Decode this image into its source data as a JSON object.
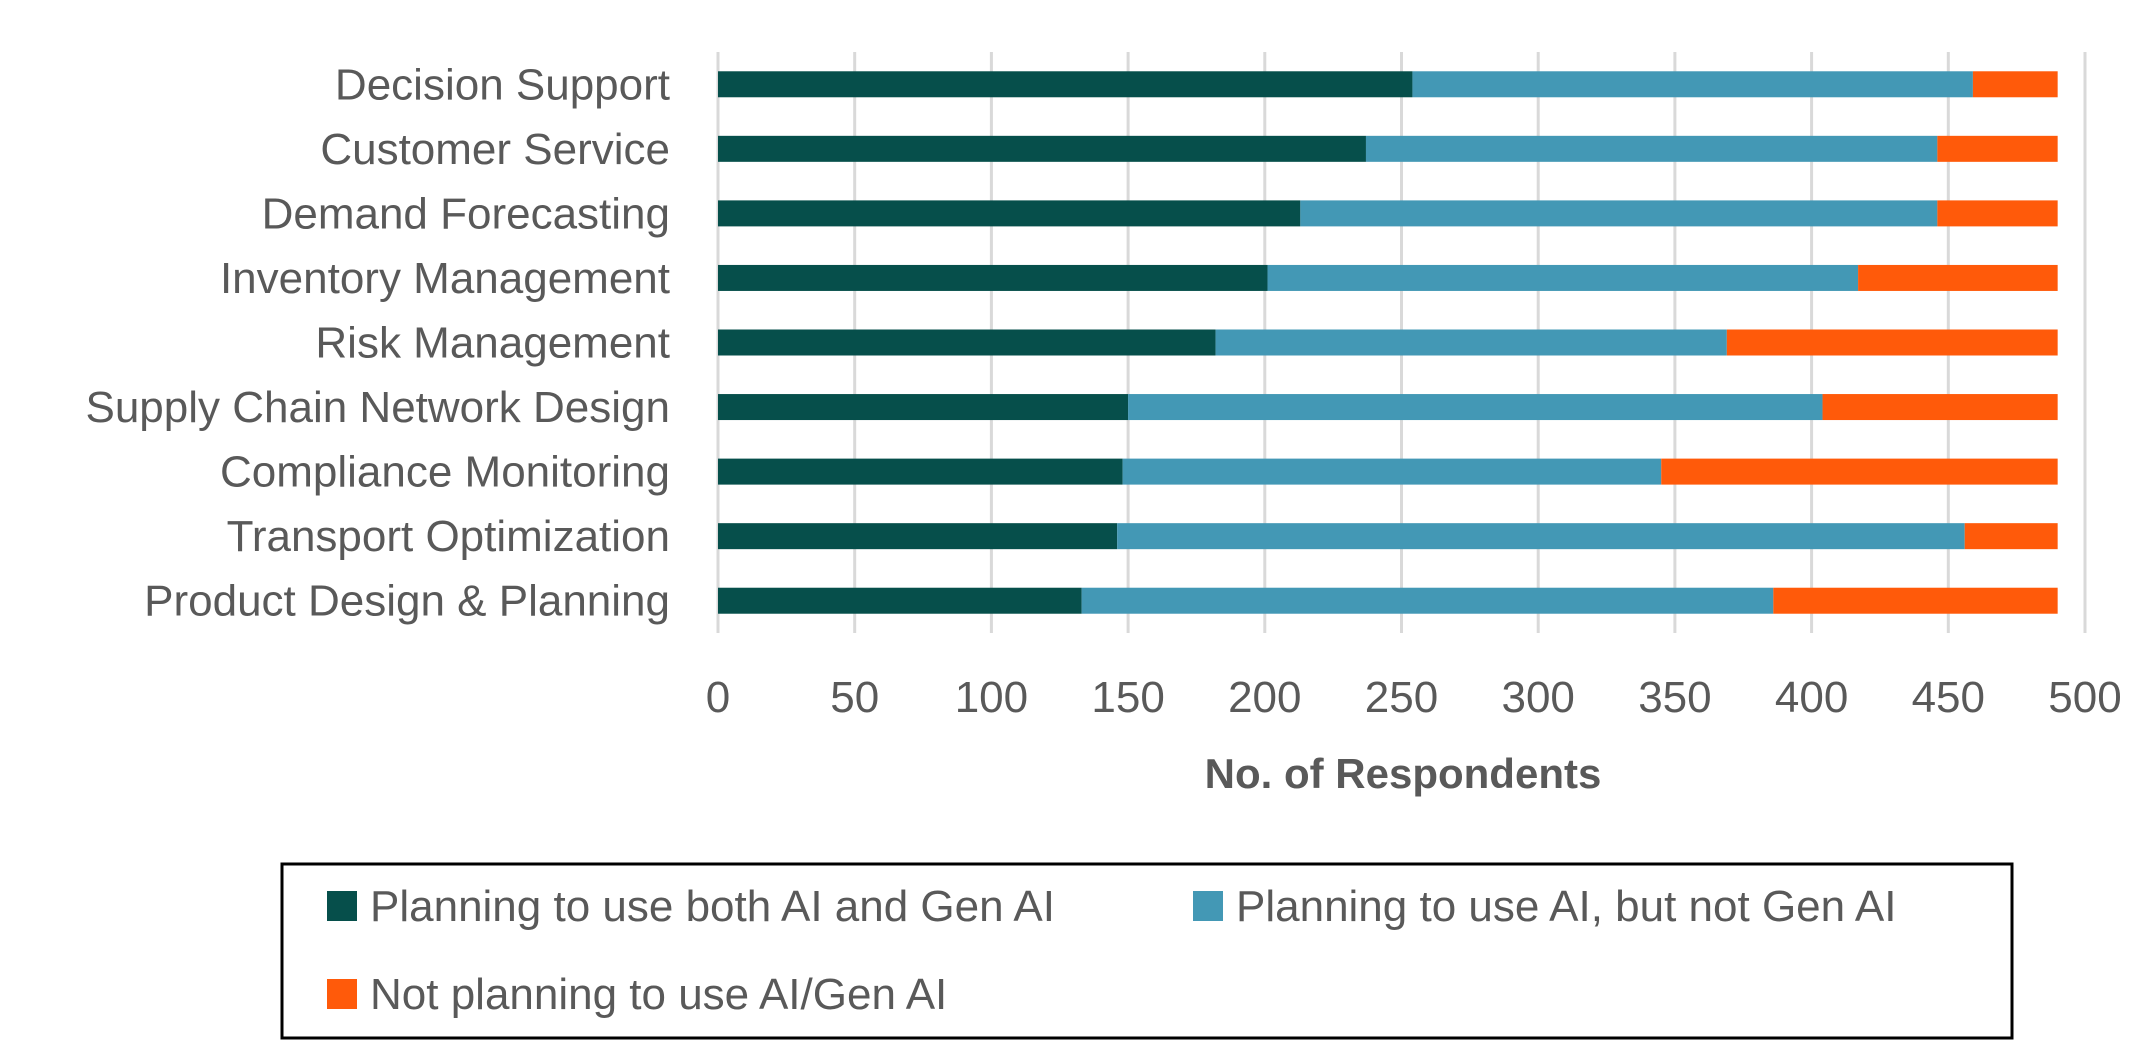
{
  "chart_data": {
    "type": "bar",
    "orientation": "horizontal",
    "stacked": true,
    "categories": [
      "Decision Support",
      "Customer Service",
      "Demand Forecasting",
      "Inventory Management",
      "Risk Management",
      "Supply Chain Network Design",
      "Compliance Monitoring",
      "Transport Optimization",
      "Product Design & Planning"
    ],
    "series": [
      {
        "name": "Planning to use both AI and Gen AI",
        "color": "#064F4B",
        "values": [
          254,
          237,
          213,
          201,
          182,
          150,
          148,
          146,
          133
        ]
      },
      {
        "name": "Planning to use AI, but not Gen AI",
        "color": "#4398B5",
        "values": [
          205,
          209,
          233,
          216,
          187,
          254,
          197,
          310,
          253
        ]
      },
      {
        "name": "Not planning to use AI/Gen AI",
        "color": "#FF5A0A",
        "values": [
          31,
          44,
          44,
          73,
          121,
          86,
          145,
          34,
          104
        ]
      }
    ],
    "xlabel": "No. of Respondents",
    "ylabel": "",
    "title": "",
    "xlim": [
      0,
      500
    ],
    "xticks": [
      "0",
      "50",
      "100",
      "150",
      "200",
      "250",
      "300",
      "350",
      "400",
      "450",
      "500"
    ],
    "grid": "vertical",
    "legend": "bottom"
  }
}
